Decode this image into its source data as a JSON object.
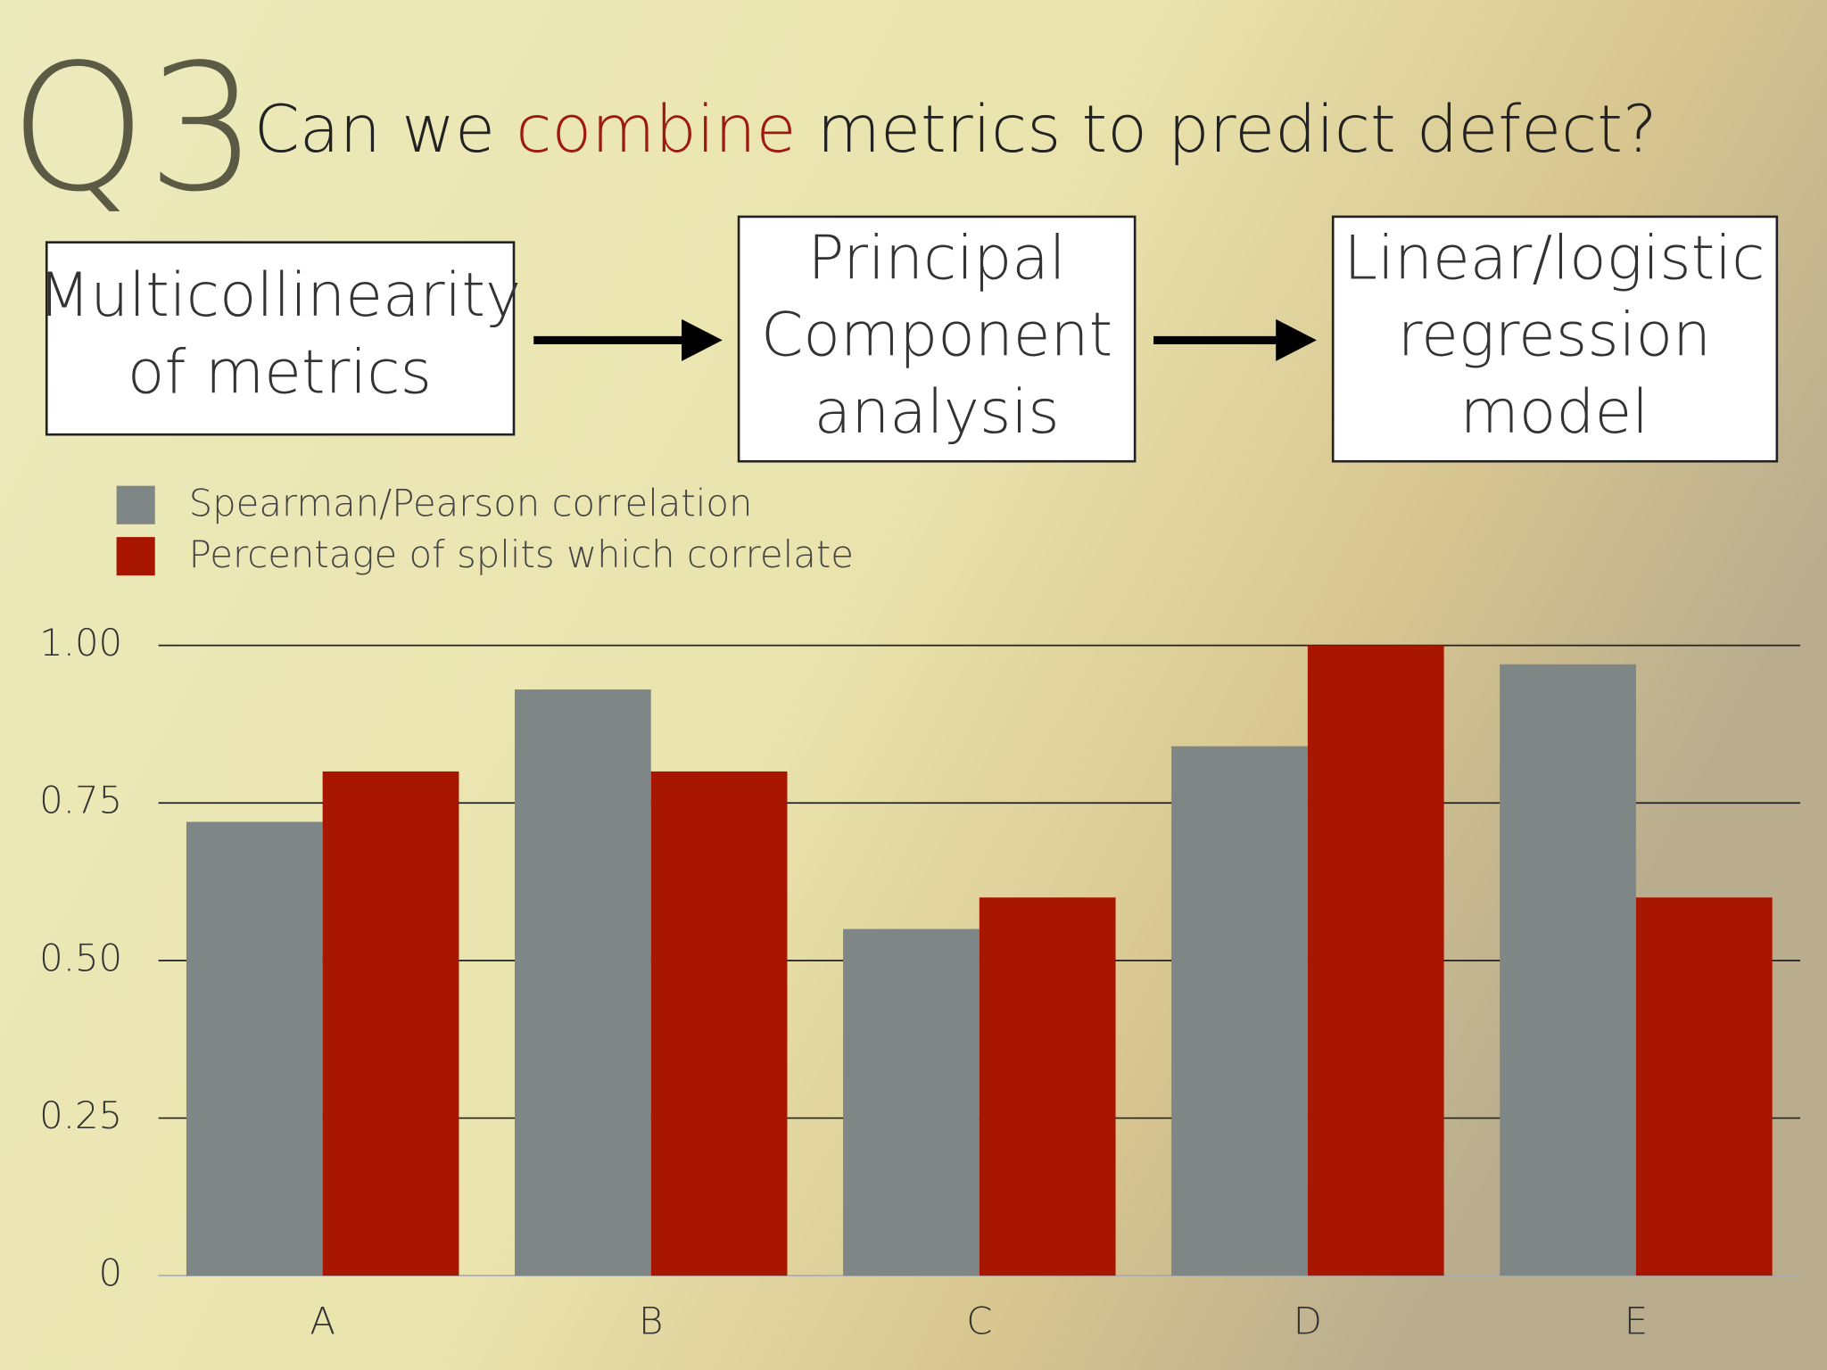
{
  "heading": {
    "label": "Q3",
    "parts": [
      "Can we ",
      "combine",
      " metrics to predict defect?"
    ]
  },
  "flow": [
    [
      "Multicollinearity",
      "of metrics"
    ],
    [
      "Principal",
      "Component",
      "analysis"
    ],
    [
      "Linear/logistic",
      "regression",
      "model"
    ]
  ],
  "chart_data": {
    "type": "bar",
    "categories": [
      "A",
      "B",
      "C",
      "D",
      "E"
    ],
    "series": [
      {
        "name": "Spearman/Pearson correlation",
        "color": "#7e8786",
        "values": [
          0.72,
          0.93,
          0.55,
          0.84,
          0.97
        ]
      },
      {
        "name": "Percentage of splits which correlate",
        "color": "#a81600",
        "values": [
          0.8,
          0.8,
          0.6,
          1.0,
          0.6
        ]
      }
    ],
    "ylim": [
      0,
      1
    ],
    "yticks": [
      0,
      0.25,
      {
        "value": 0.5,
        "label": "0.50"
      },
      0.75,
      {
        "value": 1,
        "label": "1.00"
      }
    ],
    "grid": true
  }
}
